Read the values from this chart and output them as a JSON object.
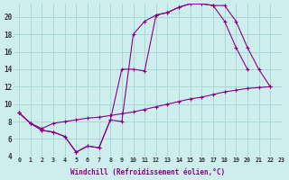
{
  "xlabel": "Windchill (Refroidissement éolien,°C)",
  "background_color": "#ceeeed",
  "grid_color": "#a8d8d5",
  "line_color": "#880088",
  "xlim": [
    -0.5,
    23
  ],
  "ylim": [
    4,
    21.5
  ],
  "yticks": [
    4,
    6,
    8,
    10,
    12,
    14,
    16,
    18,
    20
  ],
  "curve1_x": [
    0,
    1,
    2,
    3,
    4,
    5,
    6,
    7,
    8,
    9,
    10,
    11,
    12,
    13,
    14,
    15,
    16,
    17,
    18,
    19,
    20,
    21,
    22
  ],
  "curve1_y": [
    9.0,
    7.8,
    7.0,
    6.8,
    6.3,
    4.5,
    5.2,
    5.0,
    8.2,
    8.0,
    18.0,
    19.5,
    20.2,
    20.5,
    21.1,
    21.5,
    21.5,
    21.3,
    21.3,
    19.5,
    16.5,
    14.0,
    12.0
  ],
  "curve2_x": [
    0,
    1,
    2,
    3,
    4,
    5,
    6,
    7,
    8,
    9,
    10,
    11,
    12,
    13,
    14,
    15,
    16,
    17,
    18,
    19,
    20,
    21,
    22
  ],
  "curve2_y": [
    9.0,
    7.8,
    7.2,
    7.8,
    8.0,
    8.2,
    8.4,
    8.5,
    8.7,
    8.9,
    9.1,
    9.4,
    9.7,
    10.0,
    10.3,
    10.6,
    10.8,
    11.1,
    11.4,
    11.6,
    11.8,
    11.9,
    12.0
  ],
  "curve3_x": [
    0,
    1,
    2,
    3,
    4,
    5,
    6,
    7,
    8,
    9,
    10,
    11,
    12,
    13,
    14,
    15,
    16,
    17,
    18,
    19,
    20
  ],
  "curve3_y": [
    9.0,
    7.8,
    7.0,
    6.8,
    6.3,
    4.5,
    5.2,
    5.0,
    8.2,
    14.0,
    14.0,
    13.8,
    20.2,
    20.5,
    21.1,
    21.5,
    21.5,
    21.3,
    19.5,
    16.5,
    14.0
  ]
}
